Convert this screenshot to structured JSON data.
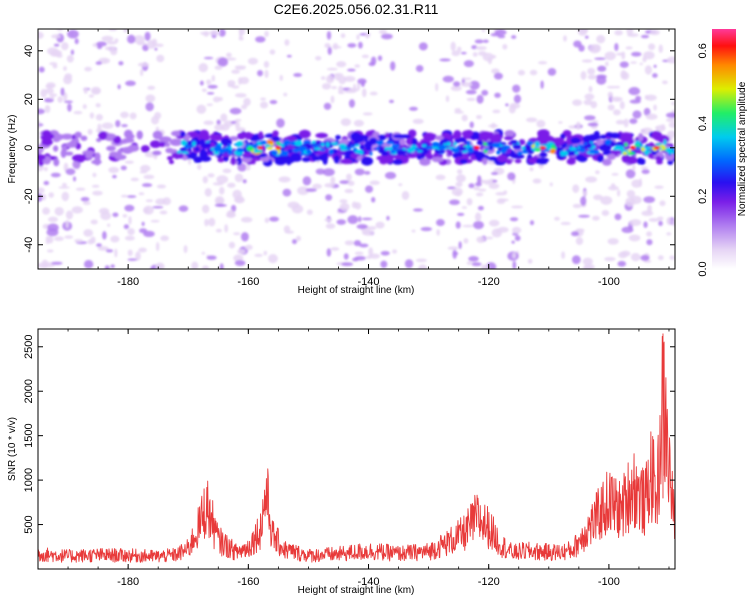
{
  "title": "C2E6.2025.056.02.31.R11",
  "colors": {
    "snr_line": "#e83a3a",
    "axis": "#000000",
    "colormap": [
      "#ffffff",
      "#e6d5f5",
      "#b07ef0",
      "#7a1fe8",
      "#2a10f0",
      "#0066ff",
      "#00ccee",
      "#22ee66",
      "#ddee00",
      "#ff8800",
      "#ff1010",
      "#ff3a9a"
    ]
  },
  "chart_data": [
    {
      "type": "heatmap",
      "title": "",
      "xlabel": "Height of straight line (km)",
      "ylabel": "Frequency (Hz)",
      "xlim": [
        -195,
        -89
      ],
      "ylim": [
        -50,
        49
      ],
      "x_ticks": [
        "-180",
        "-160",
        "-140",
        "-120",
        "-100"
      ],
      "y_ticks": [
        "-40",
        "-20",
        "0",
        "20",
        "40"
      ],
      "colorbar": {
        "label": "Normalized spectral amplitude",
        "range": [
          0.0,
          0.66
        ],
        "ticks": [
          "0.0",
          "0.2",
          "0.4",
          "0.6"
        ]
      },
      "features": {
        "band_center_hz": 0,
        "band_halfwidth_hz": 4,
        "strong_band_x_range": [
          -172,
          -89
        ],
        "noise_gaps_x": [
          [
            -174,
            -168
          ],
          [
            -160,
            -147
          ],
          [
            -138,
            -126
          ],
          [
            -115,
            -106
          ]
        ],
        "peak_amplitude_positions_x": [
          -158,
          -155,
          -122,
          -111,
          -96,
          -92
        ]
      }
    },
    {
      "type": "line",
      "title": "",
      "xlabel": "Height of straight line (km)",
      "ylabel": "SNR (10 * v/v)",
      "xlim": [
        -195,
        -89
      ],
      "ylim": [
        0,
        2700
      ],
      "x_ticks": [
        "-180",
        "-160",
        "-140",
        "-120",
        "-100"
      ],
      "y_ticks": [
        "500",
        "1000",
        "1500",
        "2000",
        "2500"
      ],
      "series": [
        {
          "x": [
            -195,
            -190,
            -185,
            -180,
            -175,
            -172,
            -170,
            -168,
            -167,
            -165,
            -162,
            -160,
            -158,
            -157,
            -156,
            -154,
            -150,
            -145,
            -140,
            -135,
            -130,
            -127,
            -124,
            -122,
            -120,
            -118,
            -116,
            -114,
            -112,
            -110,
            -108,
            -106,
            -104,
            -102,
            -100,
            -98,
            -96,
            -94,
            -93,
            -92,
            -91,
            -90,
            -89
          ],
          "y": [
            230,
            200,
            215,
            210,
            195,
            220,
            310,
            700,
            1000,
            450,
            260,
            330,
            620,
            1200,
            520,
            300,
            210,
            230,
            280,
            240,
            270,
            400,
            560,
            800,
            640,
            380,
            250,
            280,
            270,
            260,
            260,
            300,
            560,
            800,
            1050,
            900,
            1300,
            1000,
            1500,
            1100,
            2650,
            1600,
            600
          ]
        }
      ]
    }
  ]
}
